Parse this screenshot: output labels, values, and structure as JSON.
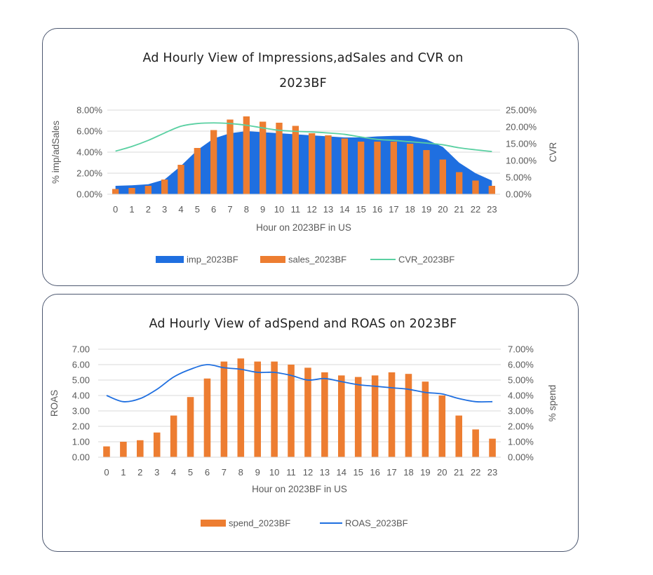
{
  "chart_data": [
    {
      "type": "bar",
      "title_lines": [
        "Ad Hourly View of Impressions,adSales and CVR on",
        "2023BF"
      ],
      "xlabel": "Hour on 2023BF in US",
      "ylabel_left": "% imp/adSales",
      "ylabel_right": "CVR",
      "categories": [
        "0",
        "1",
        "2",
        "3",
        "4",
        "5",
        "6",
        "7",
        "8",
        "9",
        "10",
        "11",
        "12",
        "13",
        "14",
        "15",
        "16",
        "17",
        "18",
        "19",
        "20",
        "21",
        "22",
        "23"
      ],
      "ylim_left": [
        0,
        8
      ],
      "ylim_right": [
        0,
        25
      ],
      "left_ticks": [
        "0.00%",
        "2.00%",
        "4.00%",
        "6.00%",
        "8.00%"
      ],
      "right_ticks": [
        "0.00%",
        "5.00%",
        "10.00%",
        "15.00%",
        "20.00%",
        "25.00%"
      ],
      "grid": true,
      "legend_position": "bottom",
      "series": [
        {
          "name": "imp_2023BF",
          "kind": "area",
          "axis": "left",
          "color": "#1f6fe0",
          "values": [
            0.8,
            0.85,
            0.95,
            1.4,
            2.7,
            4.2,
            5.3,
            5.8,
            6.0,
            5.9,
            5.8,
            5.7,
            5.6,
            5.5,
            5.4,
            5.4,
            5.5,
            5.55,
            5.55,
            5.2,
            4.5,
            3.0,
            2.0,
            1.3
          ]
        },
        {
          "name": "sales_2023BF",
          "kind": "bar",
          "axis": "left",
          "color": "#ed7d31",
          "values": [
            0.5,
            0.6,
            0.8,
            1.4,
            2.8,
            4.4,
            6.1,
            7.1,
            7.4,
            6.9,
            6.8,
            6.5,
            5.8,
            5.6,
            5.3,
            5.0,
            5.0,
            5.0,
            4.8,
            4.2,
            3.3,
            2.1,
            1.3,
            0.8
          ]
        },
        {
          "name": "CVR_2023BF",
          "kind": "line",
          "axis": "right",
          "color": "#5ad0a2",
          "values": [
            12.8,
            14.2,
            16.0,
            18.2,
            20.2,
            21.0,
            21.2,
            21.0,
            20.5,
            19.7,
            19.0,
            18.7,
            18.5,
            18.2,
            17.8,
            17.0,
            16.3,
            16.0,
            15.6,
            15.2,
            14.7,
            13.8,
            13.2,
            12.7
          ]
        }
      ]
    },
    {
      "type": "bar",
      "title_lines": [
        "Ad Hourly View of adSpend and ROAS on 2023BF"
      ],
      "xlabel": "Hour on 2023BF in US",
      "ylabel_left": "ROAS",
      "ylabel_right": "% spend",
      "categories": [
        "0",
        "1",
        "2",
        "3",
        "4",
        "5",
        "6",
        "7",
        "8",
        "9",
        "10",
        "11",
        "12",
        "13",
        "14",
        "15",
        "16",
        "17",
        "18",
        "19",
        "20",
        "21",
        "22",
        "23"
      ],
      "ylim_left": [
        0,
        7
      ],
      "ylim_right": [
        0,
        7
      ],
      "left_ticks": [
        "0.00",
        "1.00",
        "2.00",
        "3.00",
        "4.00",
        "5.00",
        "6.00",
        "7.00"
      ],
      "right_ticks": [
        "0.00%",
        "1.00%",
        "2.00%",
        "3.00%",
        "4.00%",
        "5.00%",
        "6.00%",
        "7.00%"
      ],
      "grid": true,
      "legend_position": "bottom",
      "series": [
        {
          "name": "spend_2023BF",
          "kind": "bar",
          "axis": "right",
          "color": "#ed7d31",
          "values": [
            0.7,
            1.0,
            1.1,
            1.6,
            2.7,
            3.9,
            5.1,
            6.2,
            6.4,
            6.2,
            6.2,
            6.0,
            5.8,
            5.5,
            5.3,
            5.2,
            5.3,
            5.5,
            5.4,
            4.9,
            4.0,
            2.7,
            1.8,
            1.2
          ]
        },
        {
          "name": "ROAS_2023BF",
          "kind": "line",
          "axis": "left",
          "color": "#1f6fe0",
          "values": [
            4.0,
            3.6,
            3.8,
            4.4,
            5.2,
            5.7,
            6.0,
            5.8,
            5.7,
            5.5,
            5.5,
            5.3,
            5.0,
            5.1,
            4.9,
            4.7,
            4.6,
            4.5,
            4.4,
            4.2,
            4.1,
            3.8,
            3.6,
            3.6
          ]
        }
      ]
    }
  ]
}
